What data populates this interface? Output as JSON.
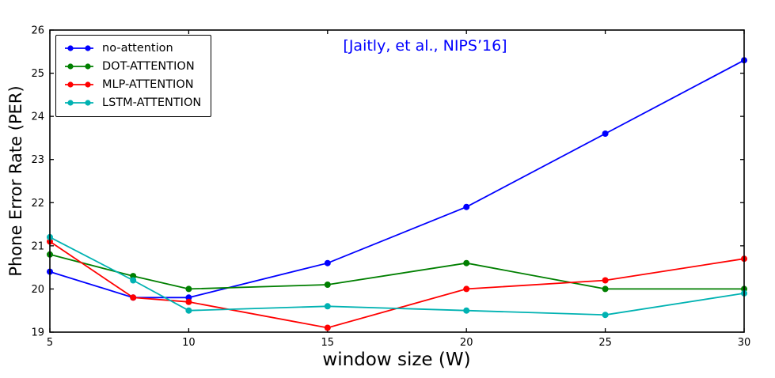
{
  "chart_data": {
    "type": "line",
    "title": "",
    "xlabel": "window size (W)",
    "ylabel": "Phone Error Rate (PER)",
    "annotation": {
      "text": "[Jaitly, et al., NIPS’16]",
      "color": "#0000ff"
    },
    "xlim": [
      5,
      30
    ],
    "ylim": [
      19,
      26
    ],
    "xticks": [
      5,
      10,
      15,
      20,
      25,
      30
    ],
    "yticks": [
      19,
      20,
      21,
      22,
      23,
      24,
      25,
      26
    ],
    "grid": false,
    "legend_position": "upper left",
    "x": [
      5,
      8,
      10,
      15,
      20,
      25,
      30
    ],
    "series": [
      {
        "name": "no-attention",
        "color": "#0000ff",
        "values": [
          20.4,
          19.8,
          19.8,
          20.6,
          21.9,
          23.6,
          25.3
        ]
      },
      {
        "name": "DOT-ATTENTION",
        "color": "#007f00",
        "values": [
          20.8,
          20.3,
          20.0,
          20.1,
          20.6,
          20.0,
          20.0
        ]
      },
      {
        "name": "MLP-ATTENTION",
        "color": "#ff0000",
        "values": [
          21.1,
          19.8,
          19.7,
          19.1,
          20.0,
          20.2,
          20.7
        ]
      },
      {
        "name": "LSTM-ATTENTION",
        "color": "#00b2b2",
        "values": [
          21.2,
          20.2,
          19.5,
          19.6,
          19.5,
          19.4,
          19.9
        ]
      }
    ]
  }
}
